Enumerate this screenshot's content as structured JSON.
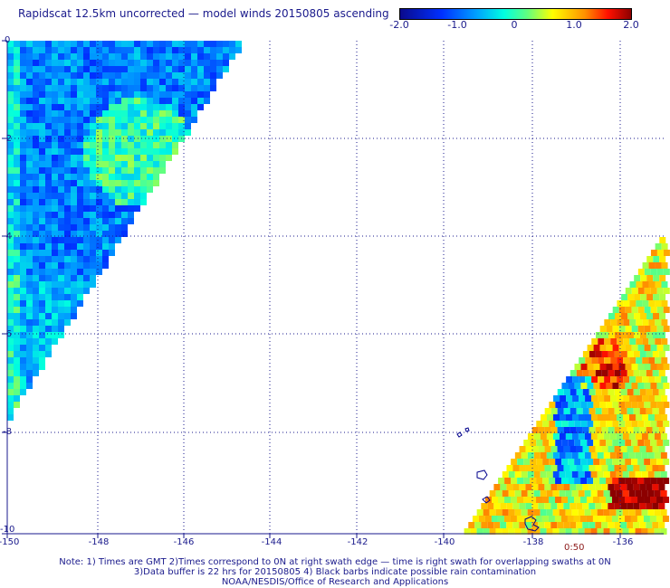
{
  "header": {
    "title": "Rapidscat 12.5km uncorrected — model winds 20150805 ascending"
  },
  "colorbar": {
    "labels": [
      "-2.0",
      "-1.0",
      "0",
      "1.0",
      "2.0"
    ]
  },
  "axes": {
    "y_labels": [
      "0",
      "-2",
      "-4",
      "-6",
      "-8",
      "-10"
    ],
    "x_labels": [
      "-150",
      "-148",
      "-146",
      "-144",
      "-142",
      "-140",
      "-138",
      "-136"
    ]
  },
  "swath": {
    "time_label": "0:50"
  },
  "footer": {
    "line1": "Note: 1) Times are GMT 2)Times correspond to 0N at right swath edge — time is right swath for overlapping swaths at 0N",
    "line2": "3)Data buffer is 22 hrs for 20150805 4) Black barbs indicate possible rain contamination",
    "line3": "NOAA/NESDIS/Office of Research and Applications"
  },
  "colors": {
    "axis_text": "#1a1a8c",
    "time_text": "#8c1a1a",
    "grid": "#1a1a8c"
  }
}
